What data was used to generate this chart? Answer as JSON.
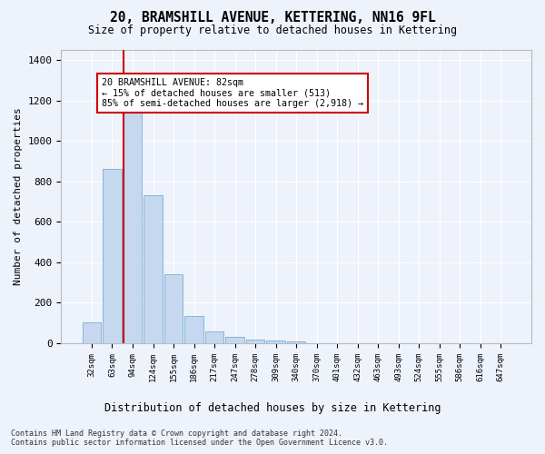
{
  "title": "20, BRAMSHILL AVENUE, KETTERING, NN16 9FL",
  "subtitle": "Size of property relative to detached houses in Kettering",
  "xlabel": "Distribution of detached houses by size in Kettering",
  "ylabel": "Number of detached properties",
  "footnote1": "Contains HM Land Registry data © Crown copyright and database right 2024.",
  "footnote2": "Contains public sector information licensed under the Open Government Licence v3.0.",
  "bar_labels": [
    "32sqm",
    "63sqm",
    "94sqm",
    "124sqm",
    "155sqm",
    "186sqm",
    "217sqm",
    "247sqm",
    "278sqm",
    "309sqm",
    "340sqm",
    "370sqm",
    "401sqm",
    "432sqm",
    "463sqm",
    "493sqm",
    "524sqm",
    "555sqm",
    "586sqm",
    "616sqm",
    "647sqm"
  ],
  "bar_values": [
    103,
    860,
    1140,
    733,
    340,
    135,
    60,
    30,
    20,
    15,
    10,
    0,
    0,
    0,
    0,
    0,
    0,
    0,
    0,
    0,
    0
  ],
  "bar_color": "#c5d8f0",
  "bar_edge_color": "#7aadd4",
  "background_color": "#edf2fb",
  "grid_color": "#ffffff",
  "property_size": "82sqm",
  "annotation_text": "20 BRAMSHILL AVENUE: 82sqm\n← 15% of detached houses are smaller (513)\n85% of semi-detached houses are larger (2,918) →",
  "annotation_box_color": "#ffffff",
  "annotation_box_edge": "#cc0000",
  "red_line_color": "#cc0000",
  "ylim": [
    0,
    1450
  ],
  "yticks": [
    0,
    200,
    400,
    600,
    800,
    1000,
    1200,
    1400
  ]
}
